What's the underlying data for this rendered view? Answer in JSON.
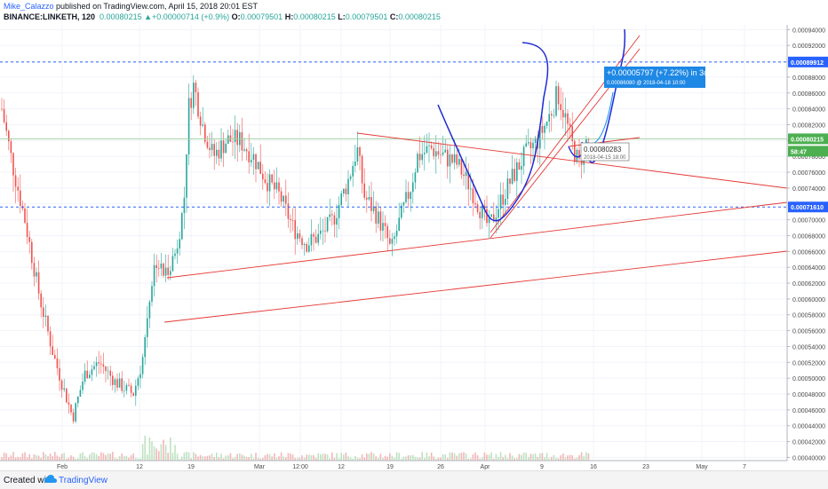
{
  "header": {
    "author": "Mike_Calazzo",
    "published": " published on TradingView.com, April 15, 2018 20:01 EST",
    "symbol": "BINANCE:LINKETH, 120",
    "last": "0.00080215",
    "change": "+0.00000714 (+0.9%)",
    "o_label": "O:",
    "o": "0.00079501",
    "h_label": "H:",
    "h": "0.00080215",
    "l_label": "L:",
    "l": "0.00079501",
    "c_label": "C:",
    "c": "0.00080215"
  },
  "footer": {
    "created_with": "Created with",
    "brand": "TradingView"
  },
  "colors": {
    "up": "#26a69a",
    "down": "#ef5350",
    "trend": "#e53935",
    "projection": "#1e2bd6",
    "projection_light": "#2196f3",
    "hline": "#2962ff",
    "price_tag": "#4caf50",
    "grid": "#f0f3fa",
    "axis_text": "#4a4a4a"
  },
  "annotations": {
    "measure_change": "+0.00005797 (+7.22%) in 3d",
    "measure_target": "0.00086080 @ 2018-04-18 10:00",
    "cursor_price": "0.00080283",
    "cursor_time": "2018-04-15 18:00"
  },
  "chart_data": {
    "type": "candlestick",
    "title": "",
    "y_ticks": [
      "0.00094000",
      "0.00092000",
      "0.00090000",
      "0.00088000",
      "0.00086000",
      "0.00084000",
      "0.00082000",
      "0.00080000",
      "0.00078000",
      "0.00076000",
      "0.00074000",
      "0.00072000",
      "0.00070000",
      "0.00068000",
      "0.00066000",
      "0.00064000",
      "0.00062000",
      "0.00060000",
      "0.00058000",
      "0.00056000",
      "0.00054000",
      "0.00052000",
      "0.00050000",
      "0.00048000",
      "0.00046000",
      "0.00044000",
      "0.00042000",
      "0.00040000"
    ],
    "ylim": [
      0.000396,
      0.000946
    ],
    "x_ticks": [
      "Feb",
      "12",
      "19",
      "Mar",
      "12:00",
      "12",
      "19",
      "26",
      "Apr",
      "9",
      "16",
      "23",
      "May",
      "7"
    ],
    "price_labels": [
      {
        "text": "0.00089912",
        "value": 0.00089912,
        "kind": "hline"
      },
      {
        "text": "0.00080215",
        "value": 0.00080215,
        "kind": "last"
      },
      {
        "text": "58:47",
        "value": 0.0007865,
        "kind": "timer"
      },
      {
        "text": "0.00071610",
        "value": 0.0007161,
        "kind": "hline"
      }
    ],
    "horizontal_lines": [
      0.00089912,
      0.0007161
    ],
    "last_price": 0.00080215
  }
}
